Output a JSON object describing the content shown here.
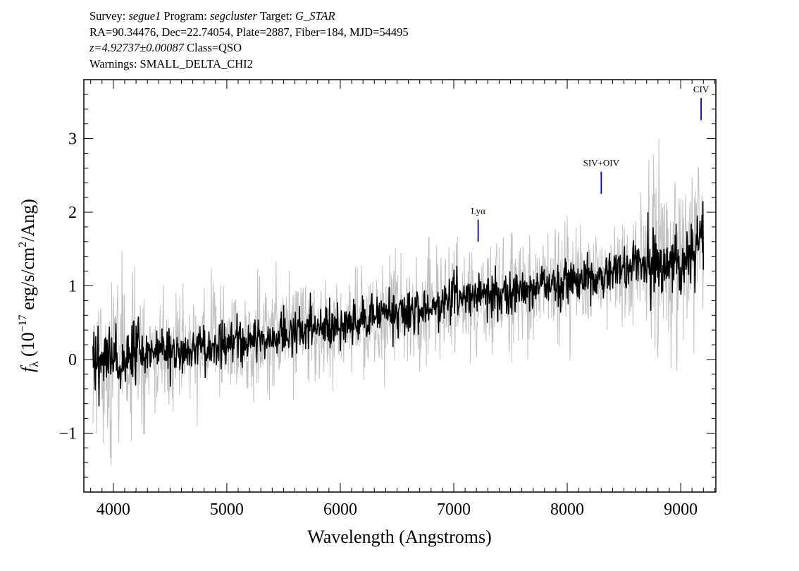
{
  "header": {
    "line1": {
      "survey_label": "Survey:",
      "survey": "segue1",
      "program_label": "Program:",
      "program": "segcluster",
      "target_label": "Target:",
      "target": "G_STAR"
    },
    "line2": "RA=90.34476, Dec=22.74054, Plate=2887, Fiber=184, MJD=54495",
    "line3": {
      "z": "z=4.92737±0.00087",
      "class": "Class=QSO"
    },
    "line4": "Warnings: SMALL_DELTA_CHI2"
  },
  "chart_data": {
    "type": "line",
    "xlabel": "Wavelength (Angstroms)",
    "ylabel": "f_λ (10^-17 erg/s/cm^2/Ang)",
    "xlim": [
      3740,
      9310
    ],
    "ylim": [
      -1.8,
      3.8
    ],
    "xticks": [
      4000,
      5000,
      6000,
      7000,
      8000,
      9000
    ],
    "yticks": [
      -1,
      0,
      1,
      2,
      3
    ],
    "series": [
      {
        "role": "flux (approximate trend, data units)",
        "color": "#000000",
        "x": [
          3820,
          3900,
          4000,
          4200,
          4400,
          4600,
          4800,
          5000,
          5200,
          5400,
          5600,
          5800,
          6000,
          6200,
          6400,
          6600,
          6800,
          7000,
          7200,
          7400,
          7600,
          7800,
          8000,
          8200,
          8400,
          8600,
          8800,
          9000,
          9100,
          9200
        ],
        "y": [
          0.0,
          0.0,
          0.0,
          0.05,
          0.1,
          0.1,
          0.15,
          0.2,
          0.25,
          0.3,
          0.4,
          0.45,
          0.45,
          0.55,
          0.6,
          0.65,
          0.7,
          0.8,
          0.85,
          0.9,
          0.95,
          1.0,
          1.05,
          1.1,
          1.2,
          1.25,
          1.3,
          1.35,
          1.5,
          1.6
        ]
      }
    ],
    "noise_band_color": "#c0c0c0",
    "line_annotations": [
      {
        "label": "Lyα",
        "x": 7215,
        "color": "#0000cc"
      },
      {
        "label": "SIV+OIV",
        "x": 8300,
        "color": "#0000cc"
      },
      {
        "label": "CIV",
        "x": 9180,
        "color": "#0000cc"
      }
    ],
    "grid": false
  }
}
